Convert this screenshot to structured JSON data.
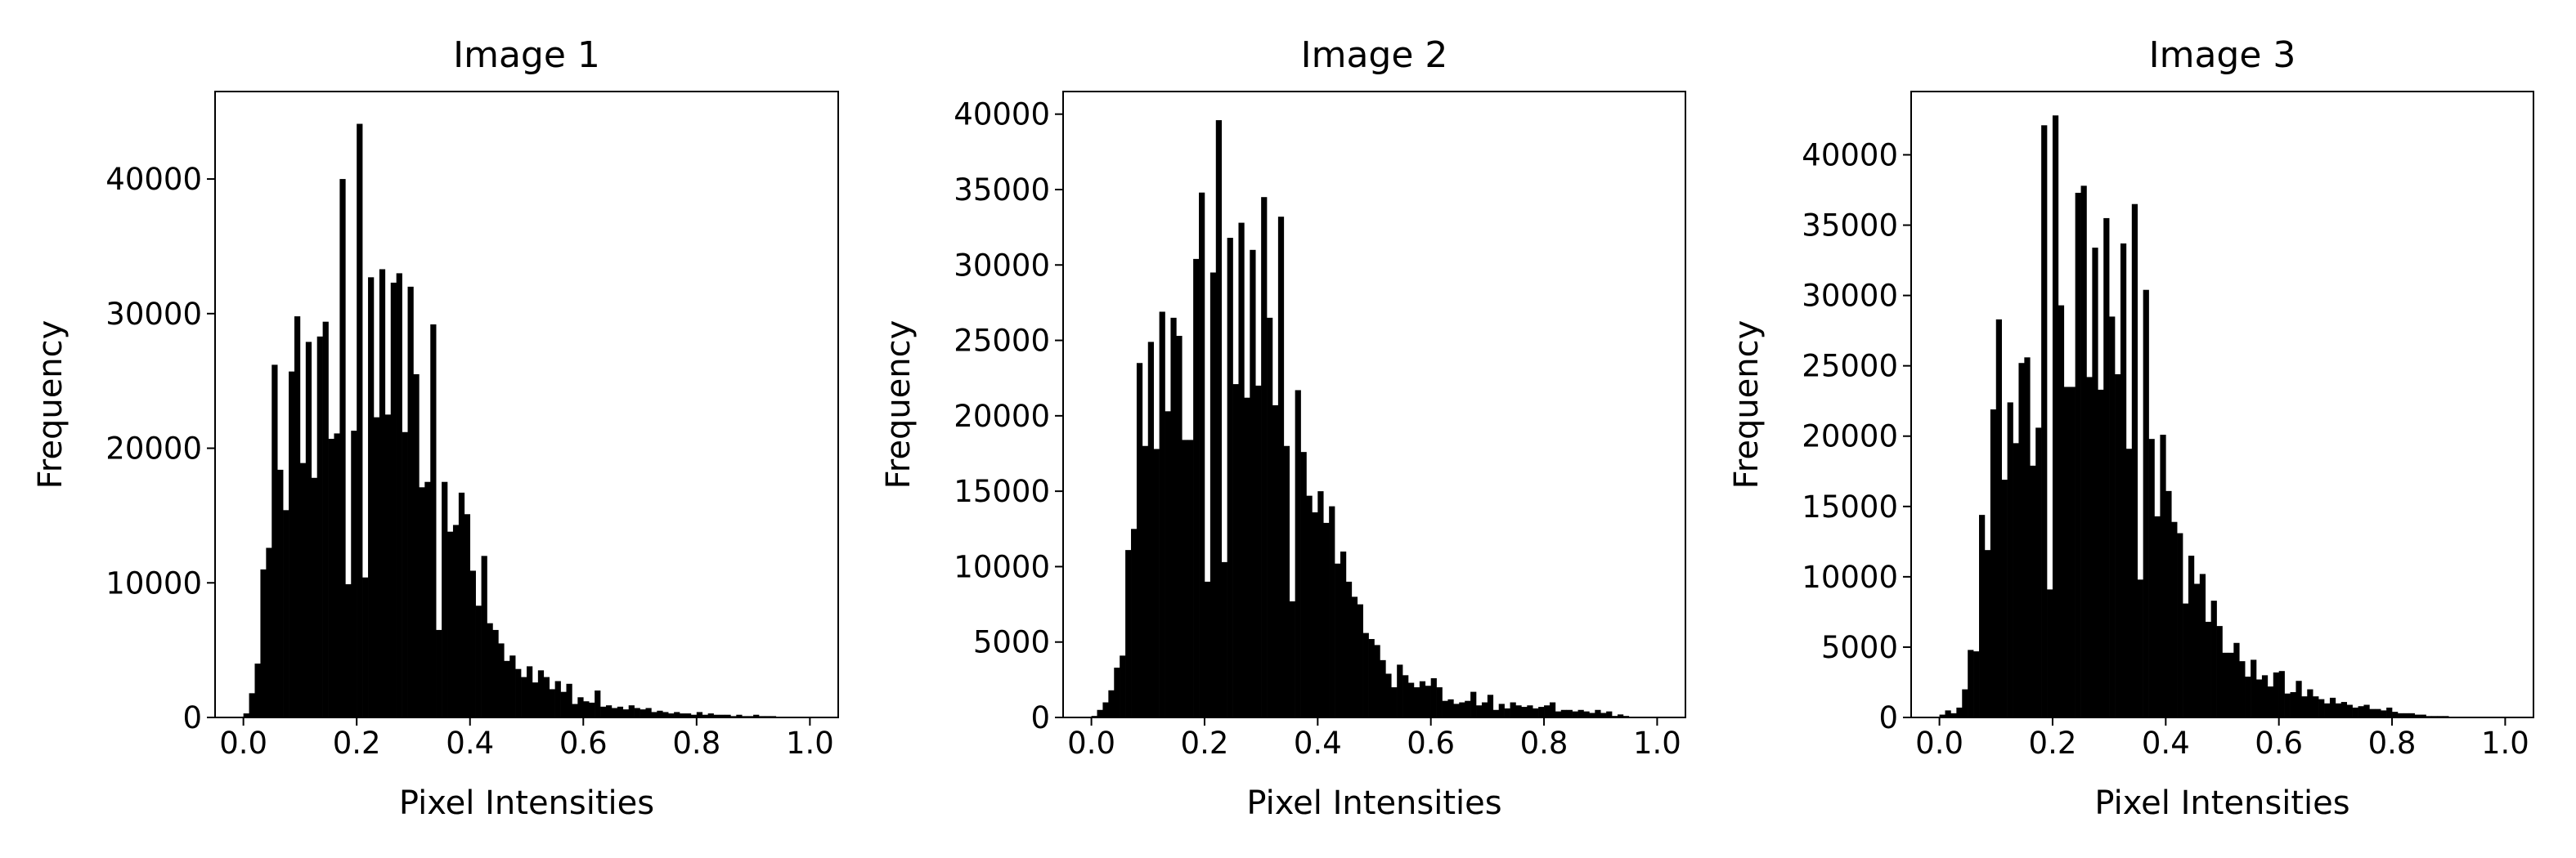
{
  "chart_data": [
    {
      "type": "bar",
      "title": "Image 1",
      "xlabel": "Pixel Intensities",
      "ylabel": "Frequency",
      "xlim": [
        -0.05,
        1.05
      ],
      "ylim": [
        0,
        46500
      ],
      "xticks": [
        0.0,
        0.2,
        0.4,
        0.6,
        0.8,
        1.0
      ],
      "xtick_labels": [
        "0.0",
        "0.2",
        "0.4",
        "0.6",
        "0.8",
        "1.0"
      ],
      "yticks": [
        0,
        10000,
        20000,
        30000,
        40000
      ],
      "ytick_labels": [
        "0",
        "10000",
        "20000",
        "30000",
        "40000"
      ],
      "bar_color": "#000000",
      "bin_width": 0.01,
      "x": [
        0.0,
        0.01,
        0.02,
        0.03,
        0.04,
        0.05,
        0.06,
        0.07,
        0.08,
        0.09,
        0.1,
        0.11,
        0.12,
        0.13,
        0.14,
        0.15,
        0.16,
        0.17,
        0.18,
        0.19,
        0.2,
        0.21,
        0.22,
        0.23,
        0.24,
        0.25,
        0.26,
        0.27,
        0.28,
        0.29,
        0.3,
        0.31,
        0.32,
        0.33,
        0.34,
        0.35,
        0.36,
        0.37,
        0.38,
        0.39,
        0.4,
        0.41,
        0.42,
        0.43,
        0.44,
        0.45,
        0.46,
        0.47,
        0.48,
        0.49,
        0.5,
        0.51,
        0.52,
        0.53,
        0.54,
        0.55,
        0.56,
        0.57,
        0.58,
        0.59,
        0.6,
        0.61,
        0.62,
        0.63,
        0.64,
        0.65,
        0.66,
        0.67,
        0.68,
        0.69,
        0.7,
        0.71,
        0.72,
        0.73,
        0.74,
        0.75,
        0.76,
        0.77,
        0.78,
        0.79,
        0.8,
        0.81,
        0.82,
        0.83,
        0.84,
        0.85,
        0.86,
        0.87,
        0.88,
        0.89,
        0.9,
        0.91,
        0.92,
        0.93,
        0.94,
        0.95,
        0.96,
        0.97,
        0.98,
        0.99
      ],
      "values": [
        300,
        1800,
        4000,
        11000,
        12600,
        26200,
        18400,
        15400,
        25700,
        29800,
        18900,
        27900,
        17800,
        28300,
        29400,
        20700,
        21100,
        40000,
        9900,
        21300,
        44100,
        10400,
        32700,
        22300,
        33300,
        22500,
        32300,
        33000,
        21200,
        32000,
        25500,
        17100,
        17500,
        29200,
        6500,
        17500,
        13800,
        14300,
        16700,
        15100,
        10900,
        8300,
        12000,
        7000,
        6500,
        5500,
        4200,
        4600,
        3600,
        3000,
        3800,
        2600,
        3500,
        3000,
        2100,
        2700,
        1900,
        2500,
        1000,
        1500,
        1200,
        1100,
        2000,
        800,
        900,
        700,
        800,
        600,
        900,
        700,
        600,
        700,
        400,
        500,
        400,
        300,
        400,
        300,
        300,
        200,
        400,
        200,
        300,
        200,
        200,
        200,
        100,
        200,
        100,
        100,
        200,
        100,
        100,
        100,
        50,
        50,
        50,
        50,
        0,
        0
      ]
    },
    {
      "type": "bar",
      "title": "Image 2",
      "xlabel": "Pixel Intensities",
      "ylabel": "Frequency",
      "xlim": [
        -0.05,
        1.05
      ],
      "ylim": [
        0,
        41500
      ],
      "xticks": [
        0.0,
        0.2,
        0.4,
        0.6,
        0.8,
        1.0
      ],
      "xtick_labels": [
        "0.0",
        "0.2",
        "0.4",
        "0.6",
        "0.8",
        "1.0"
      ],
      "yticks": [
        0,
        5000,
        10000,
        15000,
        20000,
        25000,
        30000,
        35000,
        40000
      ],
      "ytick_labels": [
        "0",
        "5000",
        "10000",
        "15000",
        "20000",
        "25000",
        "30000",
        "35000",
        "40000"
      ],
      "bar_color": "#000000",
      "bin_width": 0.01,
      "x": [
        0.0,
        0.01,
        0.02,
        0.03,
        0.04,
        0.05,
        0.06,
        0.07,
        0.08,
        0.09,
        0.1,
        0.11,
        0.12,
        0.13,
        0.14,
        0.15,
        0.16,
        0.17,
        0.18,
        0.19,
        0.2,
        0.21,
        0.22,
        0.23,
        0.24,
        0.25,
        0.26,
        0.27,
        0.28,
        0.29,
        0.3,
        0.31,
        0.32,
        0.33,
        0.34,
        0.35,
        0.36,
        0.37,
        0.38,
        0.39,
        0.4,
        0.41,
        0.42,
        0.43,
        0.44,
        0.45,
        0.46,
        0.47,
        0.48,
        0.49,
        0.5,
        0.51,
        0.52,
        0.53,
        0.54,
        0.55,
        0.56,
        0.57,
        0.58,
        0.59,
        0.6,
        0.61,
        0.62,
        0.63,
        0.64,
        0.65,
        0.66,
        0.67,
        0.68,
        0.69,
        0.7,
        0.71,
        0.72,
        0.73,
        0.74,
        0.75,
        0.76,
        0.77,
        0.78,
        0.79,
        0.8,
        0.81,
        0.82,
        0.83,
        0.84,
        0.85,
        0.86,
        0.87,
        0.88,
        0.89,
        0.9,
        0.91,
        0.92,
        0.93,
        0.94,
        0.95,
        0.96,
        0.97,
        0.98,
        0.99
      ],
      "values": [
        100,
        500,
        1000,
        1800,
        3300,
        4100,
        11100,
        12500,
        23500,
        18000,
        24900,
        17800,
        26900,
        20300,
        26500,
        25300,
        18400,
        18400,
        30400,
        34800,
        9000,
        29500,
        39600,
        10300,
        31800,
        22100,
        32800,
        21200,
        31000,
        22000,
        34500,
        26500,
        20700,
        33200,
        18000,
        7700,
        21700,
        17600,
        14700,
        13600,
        15000,
        12900,
        14000,
        10200,
        11000,
        9000,
        8000,
        7500,
        5600,
        5200,
        4800,
        3800,
        2900,
        2000,
        3500,
        2800,
        2300,
        2000,
        2400,
        2100,
        2600,
        2000,
        1100,
        1200,
        900,
        1000,
        1100,
        1700,
        800,
        1000,
        1500,
        500,
        900,
        600,
        1000,
        800,
        700,
        800,
        600,
        700,
        800,
        1000,
        400,
        500,
        500,
        400,
        500,
        400,
        300,
        500,
        300,
        400,
        100,
        200,
        100,
        50,
        50,
        50,
        0,
        0
      ]
    },
    {
      "type": "bar",
      "title": "Image 3",
      "xlabel": "Pixel Intensities",
      "ylabel": "Frequency",
      "xlim": [
        -0.05,
        1.05
      ],
      "ylim": [
        0,
        44500
      ],
      "xticks": [
        0.0,
        0.2,
        0.4,
        0.6,
        0.8,
        1.0
      ],
      "xtick_labels": [
        "0.0",
        "0.2",
        "0.4",
        "0.6",
        "0.8",
        "1.0"
      ],
      "yticks": [
        0,
        5000,
        10000,
        15000,
        20000,
        25000,
        30000,
        35000,
        40000
      ],
      "ytick_labels": [
        "0",
        "5000",
        "10000",
        "15000",
        "20000",
        "25000",
        "30000",
        "35000",
        "40000"
      ],
      "bar_color": "#000000",
      "bin_width": 0.01,
      "x": [
        0.0,
        0.01,
        0.02,
        0.03,
        0.04,
        0.05,
        0.06,
        0.07,
        0.08,
        0.09,
        0.1,
        0.11,
        0.12,
        0.13,
        0.14,
        0.15,
        0.16,
        0.17,
        0.18,
        0.19,
        0.2,
        0.21,
        0.22,
        0.23,
        0.24,
        0.25,
        0.26,
        0.27,
        0.28,
        0.29,
        0.3,
        0.31,
        0.32,
        0.33,
        0.34,
        0.35,
        0.36,
        0.37,
        0.38,
        0.39,
        0.4,
        0.41,
        0.42,
        0.43,
        0.44,
        0.45,
        0.46,
        0.47,
        0.48,
        0.49,
        0.5,
        0.51,
        0.52,
        0.53,
        0.54,
        0.55,
        0.56,
        0.57,
        0.58,
        0.59,
        0.6,
        0.61,
        0.62,
        0.63,
        0.64,
        0.65,
        0.66,
        0.67,
        0.68,
        0.69,
        0.7,
        0.71,
        0.72,
        0.73,
        0.74,
        0.75,
        0.76,
        0.77,
        0.78,
        0.79,
        0.8,
        0.81,
        0.82,
        0.83,
        0.84,
        0.85,
        0.86,
        0.87,
        0.88,
        0.89,
        0.9,
        0.91,
        0.92,
        0.93,
        0.94,
        0.95,
        0.96,
        0.97,
        0.98,
        0.99
      ],
      "values": [
        200,
        500,
        300,
        700,
        2000,
        4800,
        4700,
        14400,
        11900,
        21900,
        28300,
        16900,
        22400,
        19500,
        25200,
        25600,
        17900,
        20600,
        42100,
        9100,
        42800,
        29300,
        23500,
        23500,
        37300,
        37800,
        24200,
        33400,
        23300,
        35500,
        28500,
        24400,
        33700,
        19100,
        36500,
        9800,
        30400,
        19800,
        14300,
        20100,
        16100,
        13900,
        13100,
        8100,
        11500,
        9500,
        10200,
        6800,
        8300,
        6500,
        4600,
        4600,
        5300,
        4000,
        2900,
        4100,
        2700,
        3000,
        2200,
        3200,
        3300,
        1700,
        1800,
        2600,
        1500,
        2000,
        1500,
        1300,
        1000,
        1400,
        1000,
        1100,
        900,
        700,
        800,
        900,
        600,
        600,
        500,
        700,
        400,
        300,
        300,
        300,
        200,
        200,
        100,
        100,
        100,
        100,
        50,
        50,
        0,
        0,
        0,
        0,
        0,
        0,
        0,
        0
      ]
    }
  ]
}
